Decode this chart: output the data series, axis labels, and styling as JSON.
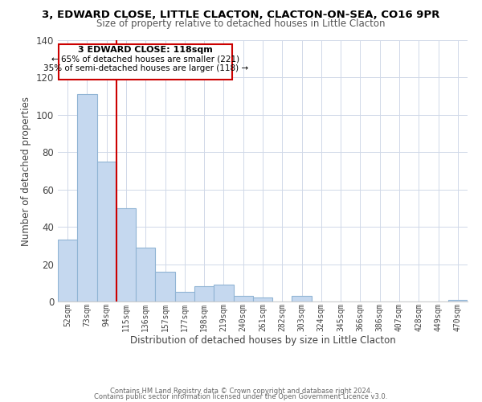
{
  "title": "3, EDWARD CLOSE, LITTLE CLACTON, CLACTON-ON-SEA, CO16 9PR",
  "subtitle": "Size of property relative to detached houses in Little Clacton",
  "xlabel": "Distribution of detached houses by size in Little Clacton",
  "ylabel": "Number of detached properties",
  "bar_labels": [
    "52sqm",
    "73sqm",
    "94sqm",
    "115sqm",
    "136sqm",
    "157sqm",
    "177sqm",
    "198sqm",
    "219sqm",
    "240sqm",
    "261sqm",
    "282sqm",
    "303sqm",
    "324sqm",
    "345sqm",
    "366sqm",
    "386sqm",
    "407sqm",
    "428sqm",
    "449sqm",
    "470sqm"
  ],
  "bar_values": [
    33,
    111,
    75,
    50,
    29,
    16,
    5,
    8,
    9,
    3,
    2,
    0,
    3,
    0,
    0,
    0,
    0,
    0,
    0,
    0,
    1
  ],
  "bar_color": "#c5d8ef",
  "bar_edge_color": "#90b4d4",
  "vline_x_index": 3,
  "vline_color": "#cc0000",
  "annotation_line1": "3 EDWARD CLOSE: 118sqm",
  "annotation_line2": "← 65% of detached houses are smaller (221)",
  "annotation_line3": "35% of semi-detached houses are larger (118) →",
  "box_edge_color": "#cc0000",
  "ylim": [
    0,
    140
  ],
  "yticks": [
    0,
    20,
    40,
    60,
    80,
    100,
    120,
    140
  ],
  "footer1": "Contains HM Land Registry data © Crown copyright and database right 2024.",
  "footer2": "Contains public sector information licensed under the Open Government Licence v3.0."
}
